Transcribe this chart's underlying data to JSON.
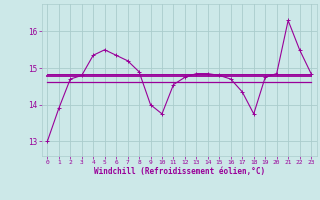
{
  "x": [
    0,
    1,
    2,
    3,
    4,
    5,
    6,
    7,
    8,
    9,
    10,
    11,
    12,
    13,
    14,
    15,
    16,
    17,
    18,
    19,
    20,
    21,
    22,
    23
  ],
  "y_main": [
    13.0,
    13.9,
    14.7,
    14.8,
    15.35,
    15.5,
    15.35,
    15.2,
    14.9,
    14.0,
    13.75,
    14.55,
    14.75,
    14.85,
    14.85,
    14.8,
    14.7,
    14.35,
    13.75,
    14.75,
    14.85,
    16.3,
    15.5,
    14.85
  ],
  "y_flat1": [
    14.62,
    14.62,
    14.62,
    14.62,
    14.62,
    14.62,
    14.62,
    14.62,
    14.62,
    14.62,
    14.62,
    14.62,
    14.62,
    14.62,
    14.62,
    14.62,
    14.62,
    14.62,
    14.62,
    14.62,
    14.62,
    14.62,
    14.62,
    14.62
  ],
  "y_flat2": [
    14.78,
    14.78,
    14.78,
    14.78,
    14.78,
    14.78,
    14.78,
    14.78,
    14.78,
    14.78,
    14.78,
    14.78,
    14.78,
    14.78,
    14.78,
    14.78,
    14.78,
    14.78,
    14.78,
    14.78,
    14.78,
    14.78,
    14.78,
    14.78
  ],
  "y_flat3": [
    14.85,
    14.85,
    14.85,
    14.85,
    14.85,
    14.85,
    14.85,
    14.85,
    14.85,
    14.85,
    14.85,
    14.85,
    14.85,
    14.85,
    14.85,
    14.85,
    14.85,
    14.85,
    14.85,
    14.85,
    14.85,
    14.85,
    14.85,
    14.85
  ],
  "line_color": "#990099",
  "bg_color": "#cce8e8",
  "grid_color": "#aacccc",
  "ylim": [
    12.6,
    16.75
  ],
  "xlim": [
    -0.5,
    23.5
  ],
  "yticks": [
    13,
    14,
    15,
    16
  ],
  "xticks": [
    0,
    1,
    2,
    3,
    4,
    5,
    6,
    7,
    8,
    9,
    10,
    11,
    12,
    13,
    14,
    15,
    16,
    17,
    18,
    19,
    20,
    21,
    22,
    23
  ],
  "xlabel": "Windchill (Refroidissement éolien,°C)",
  "font_color": "#990099"
}
